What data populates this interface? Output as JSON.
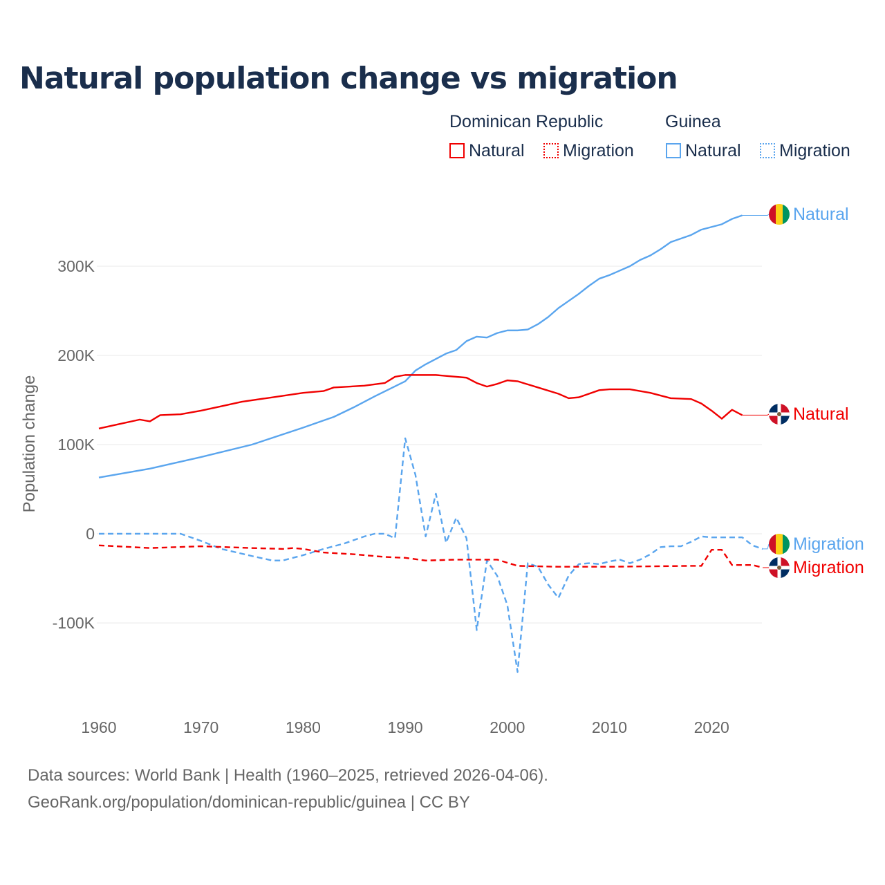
{
  "title": "Natural population change vs migration",
  "legend": {
    "groups": [
      {
        "name": "Dominican Republic",
        "items": [
          "Natural",
          "Migration"
        ]
      },
      {
        "name": "Guinea",
        "items": [
          "Natural",
          "Migration"
        ]
      }
    ]
  },
  "footer": {
    "line1": "Data sources: World Bank | Health (1960–2025, retrieved 2026-04-06).",
    "line2": "GeoRank.org/population/dominican-republic/guinea | CC BY"
  },
  "colors": {
    "dr": "#f00000",
    "guinea": "#5aa5ee"
  },
  "chart_data": {
    "type": "line",
    "title": "Natural population change vs migration",
    "xlabel": "",
    "ylabel": "Population change",
    "xlim": [
      1960,
      2025
    ],
    "ylim": [
      -170000,
      370000
    ],
    "xticks": [
      1960,
      1970,
      1980,
      1990,
      2000,
      2010,
      2020
    ],
    "xtick_labels": [
      "1960",
      "1970",
      "1980",
      "1990",
      "2000",
      "2010",
      "2020"
    ],
    "yticks": [
      -100000,
      0,
      100000,
      200000,
      300000
    ],
    "ytick_labels": [
      "-100K",
      "0",
      "100K",
      "200K",
      "300K"
    ],
    "grid": true,
    "series": [
      {
        "name": "Guinea Natural",
        "country": "Guinea",
        "label": "Natural",
        "color": "#5aa5ee",
        "dash": false,
        "x": [
          1960,
          1965,
          1970,
          1975,
          1980,
          1982,
          1983,
          1985,
          1987,
          1990,
          1991,
          1992,
          1993,
          1994,
          1995,
          1996,
          1997,
          1998,
          1999,
          2000,
          2001,
          2002,
          2003,
          2004,
          2005,
          2006,
          2007,
          2008,
          2009,
          2010,
          2011,
          2012,
          2013,
          2014,
          2015,
          2016,
          2017,
          2018,
          2019,
          2020,
          2021,
          2022,
          2023
        ],
        "y": [
          63000,
          73000,
          86000,
          100000,
          119000,
          127000,
          131000,
          142000,
          154000,
          171000,
          183000,
          190000,
          196000,
          202000,
          206000,
          216000,
          221000,
          220000,
          225000,
          228000,
          228000,
          229000,
          235000,
          243000,
          253000,
          261000,
          269000,
          278000,
          286000,
          290000,
          295000,
          300000,
          307000,
          312000,
          319000,
          327000,
          331000,
          335000,
          341000,
          344000,
          347000,
          353000,
          357000
        ]
      },
      {
        "name": "Dominican Republic Natural",
        "country": "Dominican Republic",
        "label": "Natural",
        "color": "#f00000",
        "dash": false,
        "x": [
          1960,
          1962,
          1964,
          1965,
          1966,
          1968,
          1970,
          1972,
          1974,
          1977,
          1980,
          1982,
          1983,
          1986,
          1988,
          1989,
          1990,
          1993,
          1996,
          1997,
          1998,
          1999,
          2000,
          2001,
          2003,
          2005,
          2006,
          2007,
          2009,
          2010,
          2012,
          2014,
          2016,
          2018,
          2019,
          2020,
          2021,
          2022,
          2023
        ],
        "y": [
          118000,
          123000,
          128000,
          126000,
          133000,
          134000,
          138000,
          143000,
          148000,
          153000,
          158000,
          160000,
          164000,
          166000,
          169000,
          176000,
          178000,
          178000,
          175000,
          169000,
          165000,
          168000,
          172000,
          171000,
          164000,
          157000,
          152000,
          153000,
          161000,
          162000,
          162000,
          158000,
          152000,
          151000,
          146000,
          138000,
          129000,
          139000,
          133000
        ]
      },
      {
        "name": "Guinea Migration",
        "country": "Guinea",
        "label": "Migration",
        "color": "#5aa5ee",
        "dash": true,
        "x": [
          1960,
          1968,
          1970,
          1972,
          1975,
          1977,
          1978,
          1980,
          1982,
          1984,
          1986,
          1987,
          1988,
          1989,
          1990,
          1991,
          1992,
          1993,
          1994,
          1995,
          1996,
          1997,
          1998,
          1999,
          2000,
          2001,
          2002,
          2003,
          2004,
          2005,
          2006,
          2007,
          2008,
          2009,
          2010,
          2011,
          2012,
          2013,
          2014,
          2015,
          2016,
          2017,
          2018,
          2019,
          2020,
          2021,
          2022,
          2023,
          2024,
          2025
        ],
        "y": [
          0,
          0,
          -8000,
          -17000,
          -25000,
          -30000,
          -30000,
          -24000,
          -17000,
          -11000,
          -3000,
          0,
          0,
          -5000,
          107000,
          66000,
          -3000,
          45000,
          -10000,
          18000,
          -5000,
          -108000,
          -30000,
          -47000,
          -80000,
          -155000,
          -33000,
          -37000,
          -57000,
          -72000,
          -47000,
          -34000,
          -33000,
          -34000,
          -31000,
          -29000,
          -33000,
          -29000,
          -23000,
          -15000,
          -14000,
          -14000,
          -9000,
          -3000,
          -4000,
          -4000,
          -4000,
          -4000,
          -13000,
          -17000
        ]
      },
      {
        "name": "Dominican Republic Migration",
        "country": "Dominican Republic",
        "label": "Migration",
        "color": "#f00000",
        "dash": true,
        "x": [
          1960,
          1965,
          1970,
          1975,
          1978,
          1979,
          1980,
          1982,
          1985,
          1988,
          1990,
          1992,
          1995,
          1999,
          2001,
          2005,
          2010,
          2018,
          2019,
          2020,
          2021,
          2022,
          2024,
          2025
        ],
        "y": [
          -13000,
          -16000,
          -14000,
          -16000,
          -17000,
          -16000,
          -17000,
          -21000,
          -23000,
          -26000,
          -27000,
          -30000,
          -29000,
          -29000,
          -36000,
          -37000,
          -37000,
          -36000,
          -36000,
          -18000,
          -18000,
          -35000,
          -35000,
          -38000
        ]
      }
    ]
  }
}
